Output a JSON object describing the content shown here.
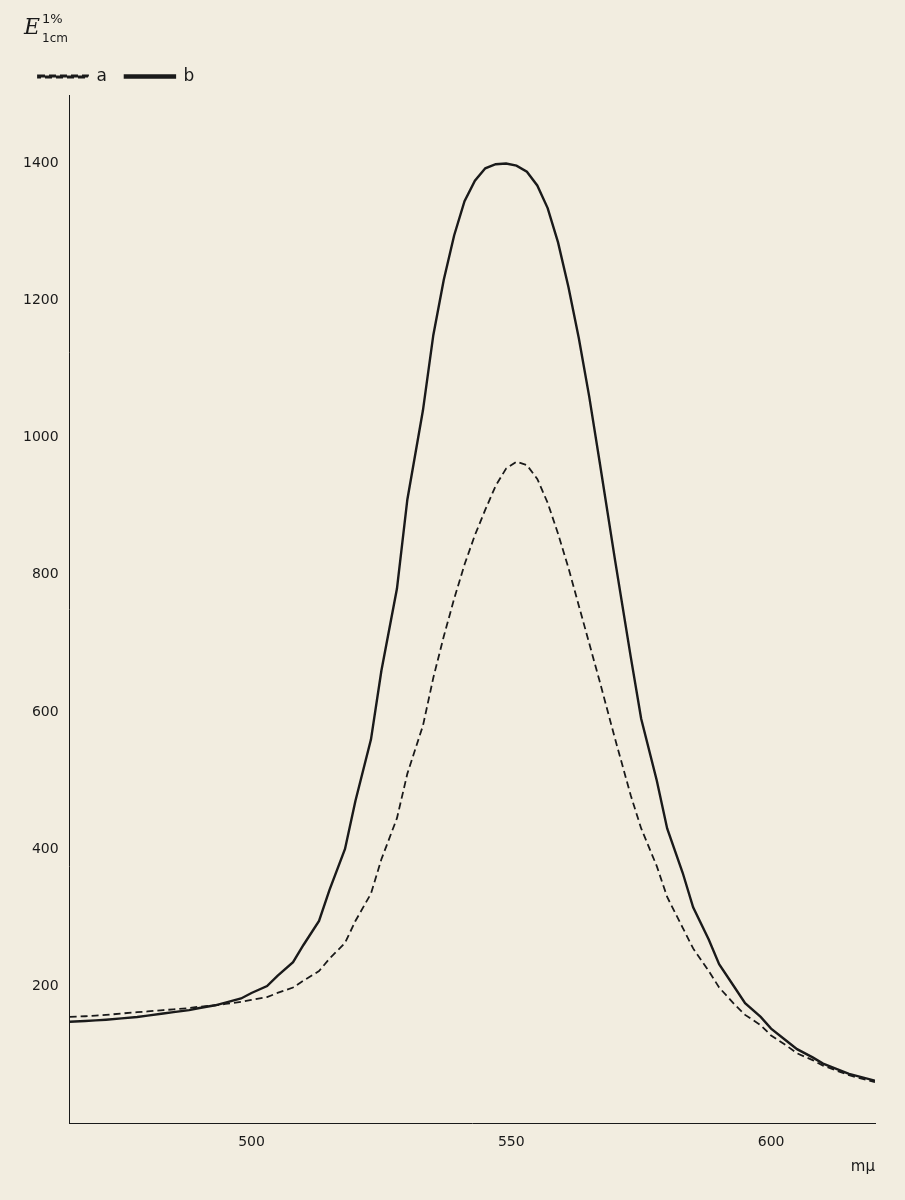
{
  "chart_data": {
    "type": "line",
    "xlabel": "mμ",
    "ylabel": "E",
    "annotations": [
      "1%",
      "1cm"
    ],
    "x": [
      465,
      468,
      470,
      472,
      475,
      478,
      480,
      483,
      485,
      488,
      490,
      493,
      495,
      498,
      500,
      503,
      505,
      508,
      510,
      513,
      515,
      518,
      520,
      523,
      525,
      528,
      530,
      533,
      535,
      537,
      539,
      541,
      543,
      545,
      547,
      549,
      551,
      553,
      555,
      557,
      559,
      561,
      563,
      565,
      567,
      570,
      573,
      575,
      578,
      580,
      583,
      585,
      588,
      590,
      593,
      595,
      598,
      600,
      603,
      605,
      608,
      610,
      615,
      620
    ],
    "series": [
      {
        "name": "a",
        "color": "#1a1a1a",
        "line_style": "dashed",
        "values": [
          155,
          156,
          157,
          158,
          160,
          162,
          163,
          165,
          166,
          168,
          170,
          172,
          174,
          177,
          180,
          184,
          190,
          198,
          208,
          222,
          240,
          263,
          295,
          335,
          385,
          445,
          510,
          580,
          650,
          710,
          765,
          815,
          858,
          895,
          930,
          955,
          965,
          960,
          940,
          905,
          860,
          810,
          755,
          700,
          645,
          560,
          478,
          430,
          375,
          330,
          285,
          255,
          222,
          198,
          173,
          158,
          143,
          128,
          113,
          102,
          92,
          84,
          70,
          60
        ]
      },
      {
        "name": "b",
        "color": "#1a1a1a",
        "line_style": "solid",
        "values": [
          148,
          149,
          150,
          151,
          153,
          155,
          157,
          160,
          162,
          165,
          168,
          172,
          176,
          182,
          190,
          200,
          215,
          235,
          260,
          295,
          340,
          400,
          470,
          560,
          660,
          780,
          910,
          1040,
          1150,
          1230,
          1295,
          1345,
          1375,
          1393,
          1399,
          1400,
          1397,
          1388,
          1368,
          1335,
          1285,
          1220,
          1145,
          1060,
          965,
          820,
          680,
          590,
          500,
          430,
          365,
          315,
          268,
          232,
          198,
          175,
          155,
          138,
          120,
          108,
          96,
          87,
          72,
          62
        ]
      }
    ],
    "xlim": [
      465,
      620
    ],
    "xticks": [
      500,
      550,
      600
    ],
    "ylim": [
      0,
      1500
    ],
    "yticks": [
      200,
      400,
      600,
      800,
      1000,
      1200,
      1400
    ],
    "grid": false,
    "legend": "upper left"
  }
}
